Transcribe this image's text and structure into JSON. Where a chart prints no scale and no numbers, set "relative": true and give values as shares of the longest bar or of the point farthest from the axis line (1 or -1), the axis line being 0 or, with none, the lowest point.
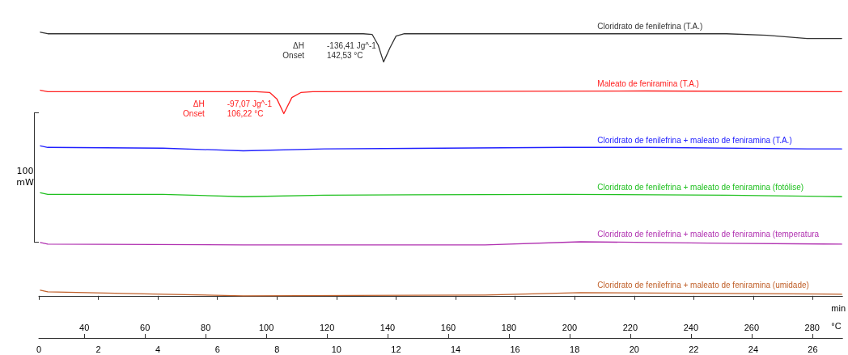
{
  "chart_data": {
    "type": "line",
    "relative": true,
    "xlabel": "min",
    "x2label": "°C",
    "ylabel": "100 mW",
    "xlim": [
      0,
      27
    ],
    "xticks": [
      0,
      2,
      4,
      6,
      8,
      10,
      12,
      14,
      16,
      18,
      20,
      22,
      24,
      26
    ],
    "x2lim": [
      25,
      290
    ],
    "x2ticks": [
      40,
      60,
      80,
      100,
      120,
      140,
      160,
      180,
      200,
      220,
      240,
      260,
      280
    ],
    "grid": false,
    "legend": false,
    "marker": "none",
    "line_style": "solid",
    "series": [
      {
        "name": "Cloridrato de fenilefrina (T.A.)",
        "color": "#333333",
        "x": [
          0.05,
          0.3,
          5,
          10.9,
          11.2,
          11.4,
          11.58,
          11.8,
          12.0,
          12.28,
          20.4,
          23.1,
          24.46,
          25.81,
          26.97
        ],
        "values": [
          1.0,
          0.994,
          0.994,
          0.994,
          0.991,
          0.951,
          0.887,
          0.942,
          0.985,
          0.994,
          0.994,
          0.994,
          0.988,
          0.976,
          0.976
        ]
      },
      {
        "name": "Maleato de feniramina (T.A.)",
        "color": "#ff2020",
        "x": [
          0.05,
          0.3,
          7.3,
          7.76,
          8.0,
          8.23,
          8.5,
          8.8,
          9.2,
          20.4,
          26.97
        ],
        "values": [
          0.78,
          0.774,
          0.774,
          0.771,
          0.746,
          0.691,
          0.752,
          0.771,
          0.774,
          0.777,
          0.774
        ]
      },
      {
        "name": "Cloridrato de fenilefrina + maleato de feniramina (T.A.)",
        "color": "#2020ff",
        "x": [
          0.05,
          0.3,
          4.17,
          6.87,
          9.58,
          17.69,
          20.4,
          25.81,
          26.97
        ],
        "values": [
          0.569,
          0.563,
          0.56,
          0.55,
          0.557,
          0.563,
          0.563,
          0.557,
          0.557
        ]
      },
      {
        "name": "Cloridrato de fenilefrina + maleato de feniramina (fotólise)",
        "color": "#20c020",
        "x": [
          0.05,
          0.3,
          4.17,
          6.87,
          9.58,
          17.69,
          23.1,
          26.97
        ],
        "values": [
          0.391,
          0.385,
          0.385,
          0.376,
          0.382,
          0.385,
          0.382,
          0.376
        ]
      },
      {
        "name": "Cloridrato de fenilefrina + maleato de feniramina (temperatura",
        "color": "#b030b0",
        "x": [
          0.05,
          0.3,
          6.87,
          14.99,
          18.2,
          23.1,
          26.97
        ],
        "values": [
          0.202,
          0.196,
          0.193,
          0.193,
          0.205,
          0.199,
          0.196
        ]
      },
      {
        "name": "Cloridrato de fenilefrina + maleato de feniramina (umidade)",
        "color": "#c0602a",
        "x": [
          0.05,
          0.3,
          4.17,
          6.87,
          14.99,
          18.2,
          23.1,
          26.97
        ],
        "values": [
          0.021,
          0.015,
          0.006,
          0.0,
          0.003,
          0.012,
          0.009,
          0.006
        ]
      }
    ],
    "annotations": [
      "ΔH\nOnset",
      "-136,41 Jg^-1\n142,53 °C",
      "ΔH\nOnset",
      "-97,07 Jg^-1\n106,22 °C"
    ]
  }
}
